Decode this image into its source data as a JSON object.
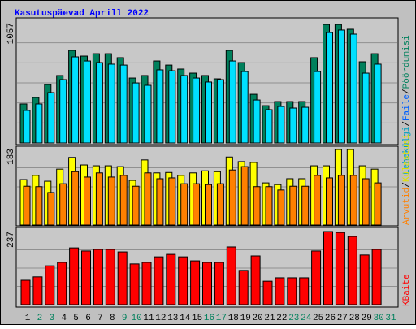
{
  "title": "Kasutuspäevad Aprill 2022",
  "legend_separator": "/",
  "categories": [
    "1",
    "2",
    "3",
    "4",
    "5",
    "6",
    "7",
    "8",
    "9",
    "10",
    "11",
    "12",
    "13",
    "14",
    "15",
    "16",
    "17",
    "18",
    "19",
    "20",
    "21",
    "22",
    "23",
    "24",
    "25",
    "26",
    "27",
    "28",
    "29",
    "30",
    "31"
  ],
  "category_colors": [
    "#000000",
    "#00805c",
    "#00805c",
    "#000000",
    "#000000",
    "#000000",
    "#000000",
    "#000000",
    "#00805c",
    "#00805c",
    "#000000",
    "#000000",
    "#000000",
    "#000000",
    "#000000",
    "#00805c",
    "#00805c",
    "#000000",
    "#000000",
    "#000000",
    "#000000",
    "#000000",
    "#00805c",
    "#00805c",
    "#000000",
    "#000000",
    "#000000",
    "#000000",
    "#000000",
    "#00805c",
    "#00805c"
  ],
  "chart_data": [
    {
      "type": "bar",
      "ylim": [
        0,
        1057
      ],
      "yticks": [
        1057
      ],
      "legend": [
        {
          "name": "Lehekülgi",
          "color": "#00a0c0"
        },
        {
          "name": "Faile",
          "color": "#0060ff"
        },
        {
          "name": "Pöördumisi",
          "color": "#00805c"
        }
      ],
      "series": [
        {
          "name": "Pöördumisi",
          "color": "#00805c",
          "values": [
            343,
            400,
            514,
            593,
            814,
            764,
            785,
            785,
            750,
            571,
            593,
            721,
            685,
            650,
            614,
            593,
            564,
            814,
            707,
            428,
            328,
            364,
            364,
            364,
            750,
            1042,
            1042,
            1000,
            714,
            785,
            null
          ]
        },
        {
          "name": "Faile",
          "color": "#00e0ff",
          "values": [
            286,
            343,
            443,
            557,
            757,
            721,
            707,
            693,
            685,
            528,
            507,
            643,
            635,
            593,
            571,
            536,
            557,
            721,
            628,
            378,
            293,
            321,
            307,
            314,
            628,
            971,
            993,
            957,
            614,
            693,
            null
          ]
        }
      ]
    },
    {
      "type": "bar",
      "ylim": [
        0,
        183
      ],
      "yticks": [
        183
      ],
      "legend": [
        {
          "name": "Arvutid",
          "color": "#ff8000"
        },
        {
          "name": "Külastusi",
          "color": "#e0e000"
        }
      ],
      "series": [
        {
          "name": "Külastusi",
          "color": "#ffff00",
          "values": [
            109,
            119,
            105,
            134,
            162,
            144,
            142,
            142,
            140,
            107,
            156,
            125,
            126,
            119,
            125,
            130,
            128,
            163,
            152,
            150,
            101,
            97,
            111,
            111,
            142,
            142,
            181,
            181,
            142,
            134,
            null
          ]
        },
        {
          "name": "Arvutid",
          "color": "#ff8000",
          "values": [
            93,
            92,
            78,
            99,
            128,
            115,
            125,
            115,
            119,
            93,
            125,
            111,
            113,
            99,
            99,
            97,
            99,
            132,
            140,
            92,
            92,
            84,
            93,
            93,
            119,
            113,
            119,
            119,
            111,
            101,
            null
          ]
        }
      ]
    },
    {
      "type": "bar",
      "ylim": [
        0,
        237
      ],
      "yticks": [
        237
      ],
      "legend": [
        {
          "name": "KBaite",
          "color": "#ff0000"
        }
      ],
      "series": [
        {
          "name": "KBaite",
          "color": "#ff0000",
          "values": [
            79,
            90,
            126,
            137,
            184,
            174,
            179,
            179,
            171,
            132,
            137,
            155,
            163,
            155,
            142,
            137,
            137,
            187,
            111,
            158,
            76,
            87,
            87,
            87,
            174,
            237,
            234,
            221,
            161,
            179,
            null
          ]
        }
      ]
    }
  ]
}
